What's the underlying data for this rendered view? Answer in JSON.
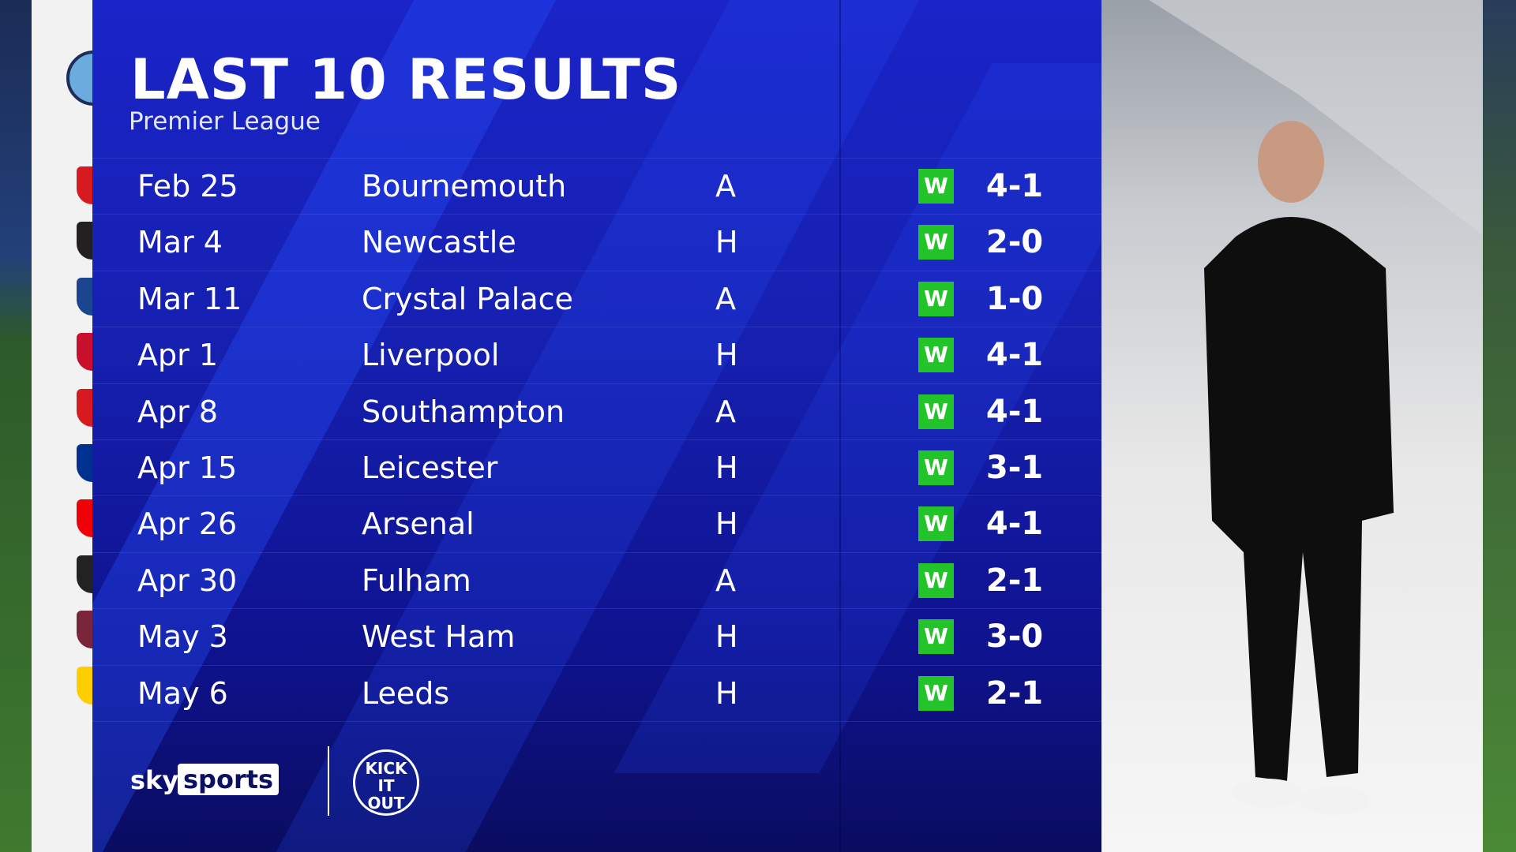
{
  "header": {
    "title": "LAST 10 RESULTS",
    "subtitle": "Premier League"
  },
  "team_crest": "manchester-city-crest",
  "colors": {
    "panel": "#1620b0",
    "win": "#22c42a",
    "text": "#ffffff"
  },
  "results": [
    {
      "date": "Feb 25",
      "opponent": "Bournemouth",
      "venue": "A",
      "result": "W",
      "score": "4-1",
      "crest_color": "#d71920"
    },
    {
      "date": "Mar 4",
      "opponent": "Newcastle",
      "venue": "H",
      "result": "W",
      "score": "2-0",
      "crest_color": "#241f20"
    },
    {
      "date": "Mar 11",
      "opponent": "Crystal Palace",
      "venue": "A",
      "result": "W",
      "score": "1-0",
      "crest_color": "#1b458f"
    },
    {
      "date": "Apr 1",
      "opponent": "Liverpool",
      "venue": "H",
      "result": "W",
      "score": "4-1",
      "crest_color": "#c8102e"
    },
    {
      "date": "Apr 8",
      "opponent": "Southampton",
      "venue": "A",
      "result": "W",
      "score": "4-1",
      "crest_color": "#d71920"
    },
    {
      "date": "Apr 15",
      "opponent": "Leicester",
      "venue": "H",
      "result": "W",
      "score": "3-1",
      "crest_color": "#003090"
    },
    {
      "date": "Apr 26",
      "opponent": "Arsenal",
      "venue": "H",
      "result": "W",
      "score": "4-1",
      "crest_color": "#ef0107"
    },
    {
      "date": "Apr 30",
      "opponent": "Fulham",
      "venue": "A",
      "result": "W",
      "score": "2-1",
      "crest_color": "#222222"
    },
    {
      "date": "May 3",
      "opponent": "West Ham",
      "venue": "H",
      "result": "W",
      "score": "3-0",
      "crest_color": "#7a263a"
    },
    {
      "date": "May 6",
      "opponent": "Leeds",
      "venue": "H",
      "result": "W",
      "score": "2-1",
      "crest_color": "#ffcd00"
    }
  ],
  "footer": {
    "sky": "sky",
    "sports": "sports",
    "partner": "KICK IT OUT"
  }
}
